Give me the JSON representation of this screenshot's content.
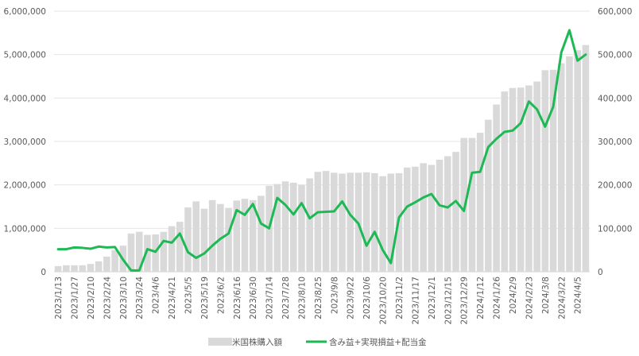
{
  "chart_data": {
    "type": "bar+line",
    "title": "",
    "x": [
      "2023/1/13",
      "2023/1/20",
      "2023/1/27",
      "2023/2/3",
      "2023/2/10",
      "2023/2/17",
      "2023/2/24",
      "2023/3/3",
      "2023/3/10",
      "2023/3/17",
      "2023/3/24",
      "2023/3/31",
      "2023/4/6",
      "2023/4/14",
      "2023/4/21",
      "2023/4/28",
      "2023/5/5",
      "2023/5/12",
      "2023/5/19",
      "2023/5/26",
      "2023/6/2",
      "2023/6/9",
      "2023/6/16",
      "2023/6/23",
      "2023/6/30",
      "2023/7/7",
      "2023/7/14",
      "2023/7/21",
      "2023/7/28",
      "2023/8/4",
      "2023/8/10",
      "2023/8/18",
      "2023/8/25",
      "2023/9/1",
      "2023/9/8",
      "2023/9/15",
      "2023/9/22",
      "2023/9/29",
      "2023/10/6",
      "2023/10/13",
      "2023/10/20",
      "2023/10/27",
      "2023/11/2",
      "2023/11/10",
      "2023/11/17",
      "2023/11/24",
      "2023/12/1",
      "2023/12/8",
      "2023/12/15",
      "2023/12/22",
      "2023/12/29",
      "2024/1/5",
      "2024/1/12",
      "2024/1/19",
      "2024/1/26",
      "2024/2/2",
      "2024/2/9",
      "2024/2/16",
      "2024/2/23",
      "2024/3/1",
      "2024/3/8",
      "2024/3/15",
      "2024/3/22",
      "2024/3/29",
      "2024/4/5",
      "2024/4/12"
    ],
    "tick_labels": [
      "2023/1/13",
      "2023/1/27",
      "2023/2/10",
      "2023/2/24",
      "2023/3/10",
      "2023/3/24",
      "2023/4/6",
      "2023/4/21",
      "2023/5/5",
      "2023/5/19",
      "2023/6/2",
      "2023/6/16",
      "2023/6/30",
      "2023/7/14",
      "2023/7/28",
      "2023/8/10",
      "2023/8/25",
      "2023/9/8",
      "2023/9/22",
      "2023/10/6",
      "2023/10/20",
      "2023/11/2",
      "2023/11/17",
      "2023/12/1",
      "2023/12/15",
      "2023/12/29",
      "2024/1/12",
      "2024/1/26",
      "2024/2/9",
      "2024/2/23",
      "2024/3/8",
      "2024/3/22",
      "2024/4/5"
    ],
    "series": [
      {
        "name": "米国株購入額",
        "kind": "bar",
        "axis": "left",
        "color": "#d9d9d9",
        "values": [
          130000,
          150000,
          150000,
          150000,
          180000,
          240000,
          350000,
          500000,
          600000,
          880000,
          920000,
          850000,
          860000,
          920000,
          1050000,
          1150000,
          1480000,
          1620000,
          1450000,
          1650000,
          1560000,
          1470000,
          1640000,
          1680000,
          1650000,
          1750000,
          1980000,
          2020000,
          2080000,
          2050000,
          2000000,
          2150000,
          2300000,
          2320000,
          2280000,
          2260000,
          2280000,
          2280000,
          2290000,
          2270000,
          2200000,
          2260000,
          2270000,
          2400000,
          2420000,
          2500000,
          2460000,
          2580000,
          2660000,
          2760000,
          3080000,
          3080000,
          3200000,
          3500000,
          3850000,
          4150000,
          4230000,
          4240000,
          4290000,
          4380000,
          4640000,
          4650000,
          4800000,
          4960000,
          5100000,
          5220000
        ]
      },
      {
        "name": "含み益+実現損益+配当金",
        "kind": "line",
        "axis": "right",
        "color": "#1db954",
        "values": [
          52000,
          52000,
          56000,
          55000,
          53000,
          58000,
          56000,
          57000,
          28000,
          3000,
          3000,
          52000,
          46000,
          71000,
          67000,
          88000,
          45000,
          32000,
          42000,
          60000,
          76000,
          88000,
          142000,
          131000,
          156000,
          111000,
          100000,
          170000,
          154000,
          132000,
          158000,
          123000,
          137000,
          138000,
          139000,
          162000,
          131000,
          111000,
          60000,
          92000,
          50000,
          20000,
          125000,
          150000,
          160000,
          171000,
          179000,
          153000,
          148000,
          163000,
          140000,
          228000,
          230000,
          287000,
          306000,
          322000,
          325000,
          342000,
          392000,
          374000,
          334000,
          380000,
          505000,
          556000,
          486000,
          500000
        ]
      }
    ],
    "y_left": {
      "min": 0,
      "max": 6000000,
      "ticks": [
        "0",
        "1,000,000",
        "2,000,000",
        "3,000,000",
        "4,000,000",
        "5,000,000",
        "6,000,000"
      ]
    },
    "y_right": {
      "min": 0,
      "max": 600000,
      "ticks": [
        "0",
        "100,000",
        "200,000",
        "300,000",
        "400,000",
        "500,000",
        "600,000"
      ]
    },
    "grid": "horizontal",
    "legend_position": "bottom"
  }
}
